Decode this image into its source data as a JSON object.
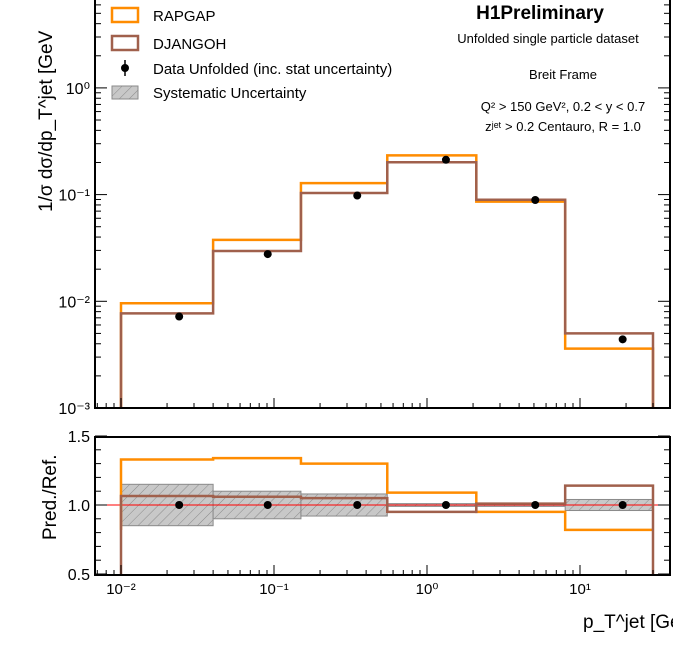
{
  "header": {
    "title": "H1Preliminary",
    "subtitle": "Unfolded single particle dataset",
    "frame": "Breit Frame",
    "cuts_line1": "Q² > 150 GeV², 0.2 < y < 0.7",
    "cuts_line2": "zʲᵉᵗ > 0.2 Centauro, R = 1.0"
  },
  "legend": {
    "rapgap": "RAPGAP",
    "djangoh": "DJANGOH",
    "data": "Data Unfolded (inc. stat uncertainty)",
    "syst": "Systematic Uncertainty"
  },
  "colors": {
    "rapgap": "#ff8c00",
    "djangoh": "#a0604c",
    "data": "#000000",
    "ref_line": "#ff0000",
    "band": "#c8c8c8"
  },
  "chart_data": [
    {
      "type": "line",
      "panel": "main",
      "ylabel": "1/σ dσ/dp_T^jet [GeV",
      "yscale": "log",
      "xscale": "log",
      "ylim": [
        0.001,
        10
      ],
      "yticks": [
        "10⁻³",
        "10⁻²",
        "10⁻¹",
        "10⁰"
      ],
      "legend_position": "top-left",
      "bin_edges": [
        0.01,
        0.04,
        0.15,
        0.55,
        2.1,
        8,
        30
      ],
      "series": [
        {
          "name": "RAPGAP",
          "style": "step",
          "values": [
            0.0096,
            0.0376,
            0.128,
            0.233,
            0.086,
            0.0036
          ]
        },
        {
          "name": "DJANGOH",
          "style": "step",
          "values": [
            0.0077,
            0.0296,
            0.1035,
            0.201,
            0.0895,
            0.005
          ]
        },
        {
          "name": "Data Unfolded (inc. stat uncertainty)",
          "style": "points",
          "x": [
            0.024,
            0.091,
            0.35,
            1.33,
            5.1,
            19
          ],
          "values": [
            0.0072,
            0.0277,
            0.098,
            0.212,
            0.089,
            0.0044
          ]
        }
      ]
    },
    {
      "type": "line",
      "panel": "ratio",
      "ylabel": "Pred./Ref.",
      "xlabel": "p_T^jet [GeV",
      "xscale": "log",
      "ylim": [
        0.5,
        1.5
      ],
      "yticks": [
        "0.5",
        "1.0",
        "1.5"
      ],
      "xticks": [
        "10⁻²",
        "10⁻¹",
        "10⁰",
        "10¹"
      ],
      "bin_edges": [
        0.01,
        0.04,
        0.15,
        0.55,
        2.1,
        8,
        30
      ],
      "series": [
        {
          "name": "RAPGAP",
          "style": "step",
          "values": [
            1.33,
            1.34,
            1.3,
            1.09,
            0.95,
            0.82
          ]
        },
        {
          "name": "DJANGOH",
          "style": "step",
          "values": [
            1.065,
            1.06,
            1.05,
            0.95,
            1.01,
            1.14
          ]
        },
        {
          "name": "Data Unfolded (inc. stat uncertainty)",
          "style": "points",
          "x": [
            0.024,
            0.091,
            0.35,
            1.33,
            5.1,
            19
          ],
          "values": [
            1,
            1,
            1,
            1,
            1,
            1
          ]
        },
        {
          "name": "Systematic Uncertainty",
          "style": "band",
          "values": [
            0.15,
            0.1,
            0.08,
            0.01,
            0.01,
            0.04
          ]
        }
      ]
    }
  ]
}
